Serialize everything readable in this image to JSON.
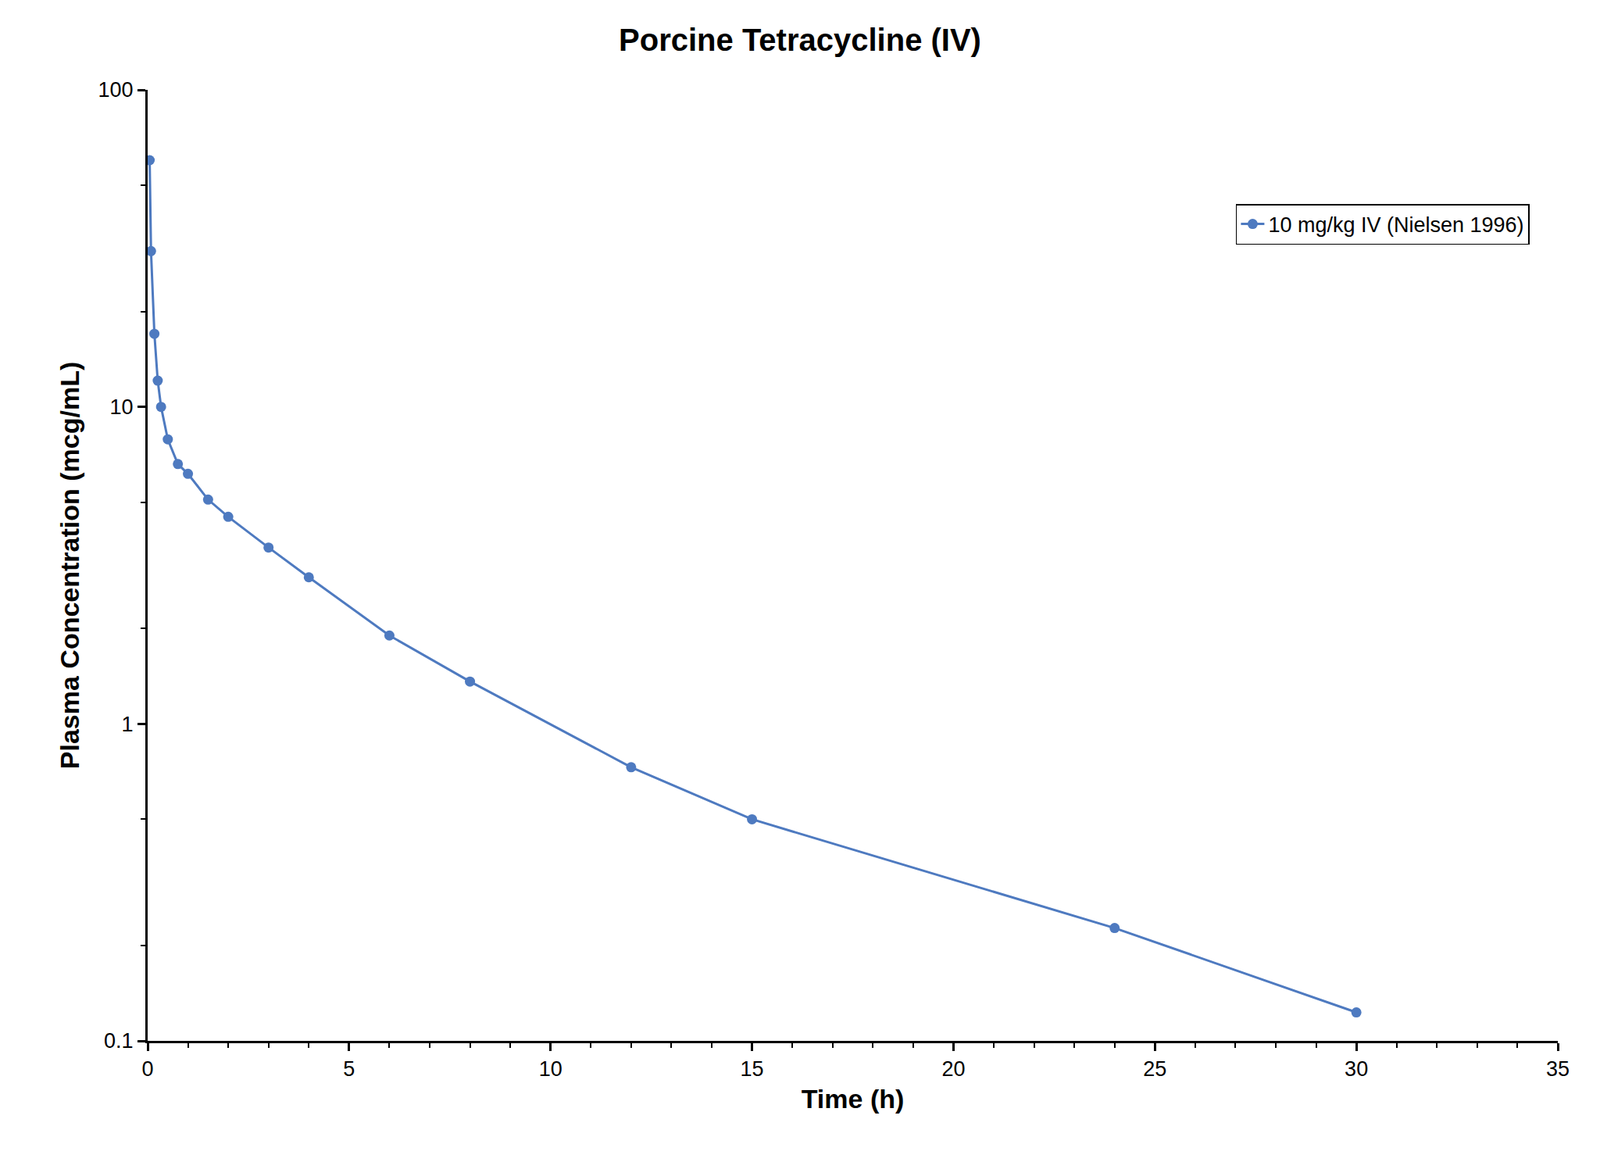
{
  "chart_data": {
    "type": "line",
    "title": "Porcine Tetracycline (IV)",
    "x_label": "Time (h)",
    "y_label": "Plasma Concentration (mcg/mL)",
    "log": "y",
    "grid": false,
    "legend": "upper right",
    "xlim": [
      0,
      35
    ],
    "xticks": [
      0,
      5,
      10,
      15,
      20,
      25,
      30,
      35
    ],
    "ylim": [
      0.1,
      100
    ],
    "yticks": [
      0.1,
      1,
      10,
      100
    ],
    "series": [
      {
        "name": "10 mg/kg IV (Nielsen 1996)",
        "color": "#4e7ac0",
        "marker": "circle",
        "line_style": "solid",
        "x": [
          0.05,
          0.083,
          0.167,
          0.25,
          0.333,
          0.5,
          0.75,
          1,
          1.5,
          2,
          3,
          4,
          6,
          8,
          12,
          15,
          24,
          30
        ],
        "values": [
          60,
          31,
          17,
          12.1,
          10,
          7.9,
          6.6,
          6.15,
          5.1,
          4.5,
          3.6,
          2.9,
          1.9,
          1.36,
          0.73,
          0.5,
          0.227,
          0.123
        ]
      }
    ]
  }
}
